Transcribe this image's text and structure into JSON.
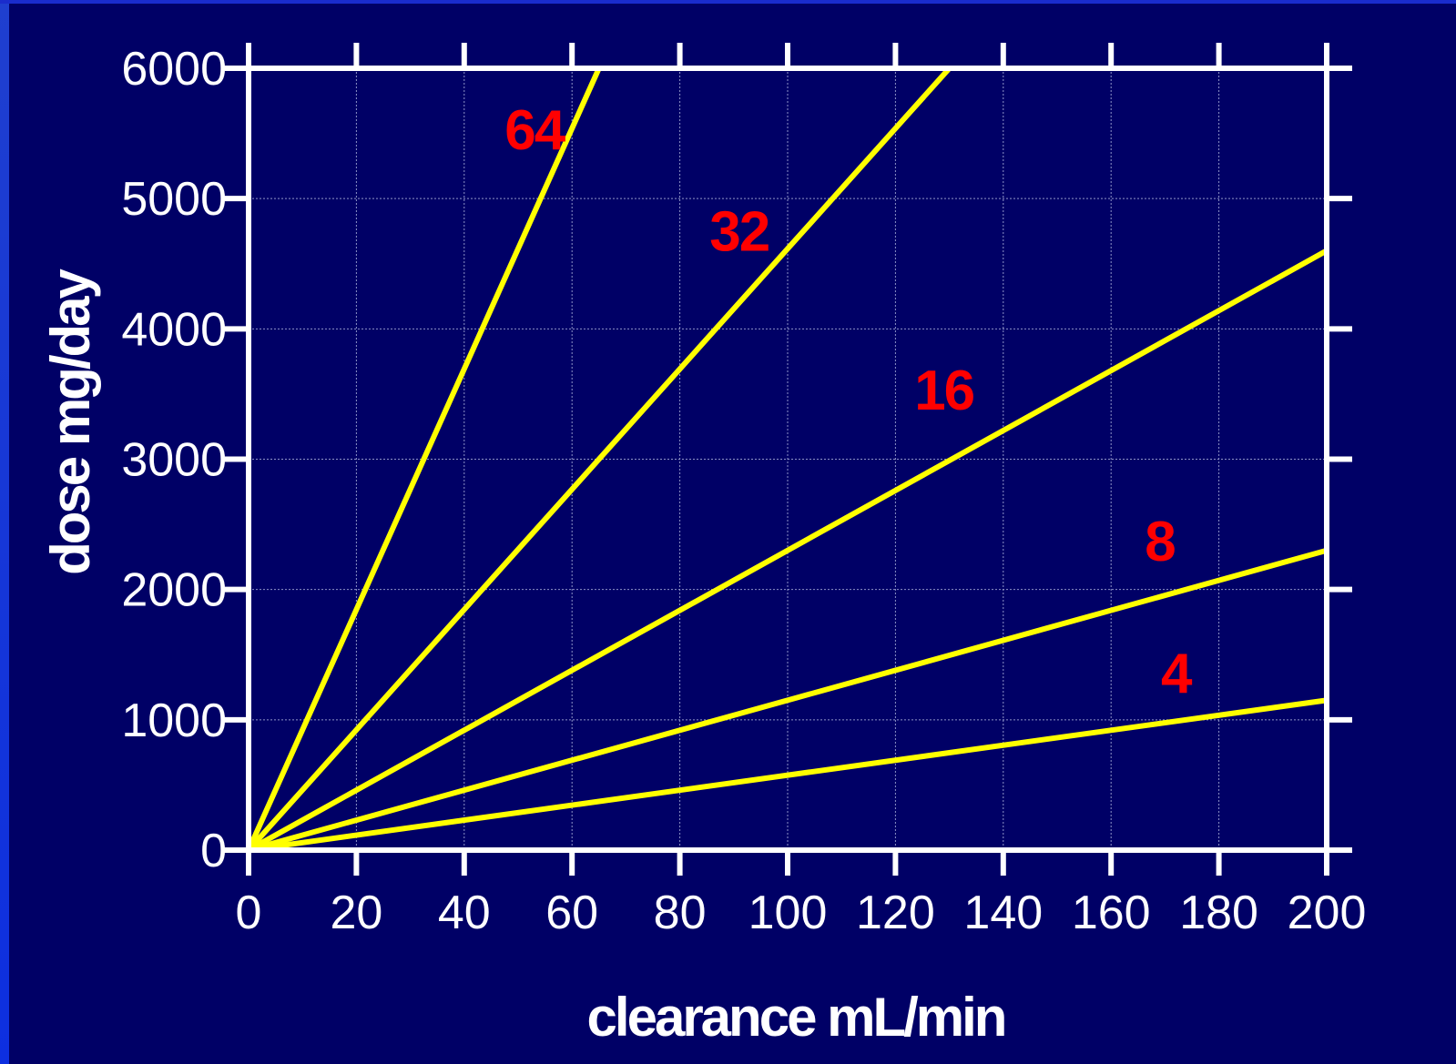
{
  "theme": {
    "background": "#000066",
    "axis_color": "#ffffff",
    "grid_color": "#8f95c8",
    "line_color": "#ffff00",
    "label_color": "#ff0000"
  },
  "chart_data": {
    "type": "line",
    "title": "",
    "xlabel": "clearance mL/min",
    "ylabel": "dose mg/day",
    "xlim": [
      0,
      200
    ],
    "ylim": [
      0,
      6000
    ],
    "xticks": [
      0,
      20,
      40,
      60,
      80,
      100,
      120,
      140,
      160,
      180,
      200
    ],
    "yticks": [
      0,
      1000,
      2000,
      3000,
      4000,
      5000,
      6000
    ],
    "grid": true,
    "series": [
      {
        "name": "64",
        "points": [
          [
            0,
            0
          ],
          [
            65,
            6000
          ]
        ]
      },
      {
        "name": "32",
        "points": [
          [
            0,
            0
          ],
          [
            130,
            6000
          ]
        ]
      },
      {
        "name": "16",
        "points": [
          [
            0,
            0
          ],
          [
            200,
            4600
          ]
        ]
      },
      {
        "name": "8",
        "points": [
          [
            0,
            0
          ],
          [
            200,
            2300
          ]
        ]
      },
      {
        "name": "4",
        "points": [
          [
            0,
            0
          ],
          [
            200,
            1150
          ]
        ]
      }
    ],
    "annotations": [
      {
        "text": "64",
        "x": 53,
        "y": 5380
      },
      {
        "text": "32",
        "x": 91,
        "y": 4600
      },
      {
        "text": "16",
        "x": 129,
        "y": 3380
      },
      {
        "text": "8",
        "x": 169,
        "y": 2220
      },
      {
        "text": "4",
        "x": 172,
        "y": 1210
      }
    ]
  }
}
